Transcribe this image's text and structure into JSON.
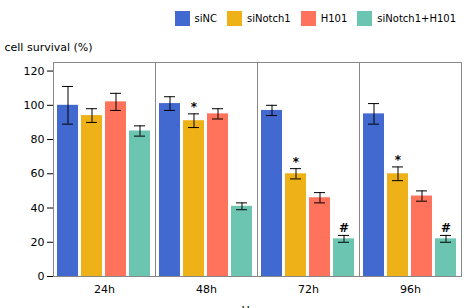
{
  "chart_data": {
    "type": "bar",
    "categories": [
      "24h",
      "48h",
      "72h",
      "96h"
    ],
    "series": [
      {
        "name": "siNC",
        "values": [
          100,
          101,
          97,
          95
        ],
        "errors": [
          11,
          4,
          3,
          6
        ]
      },
      {
        "name": "siNotch1",
        "values": [
          94,
          91,
          60,
          60
        ],
        "errors": [
          4,
          4,
          3,
          4
        ]
      },
      {
        "name": "H101",
        "values": [
          102,
          95,
          46,
          47
        ],
        "errors": [
          5,
          3,
          3,
          3
        ]
      },
      {
        "name": "siNotch1+H101",
        "values": [
          85,
          41,
          22,
          22
        ],
        "errors": [
          3,
          2,
          2,
          2
        ]
      }
    ],
    "xlabel": "Hours",
    "ylabel": "cell survival (%)",
    "ylim": [
      0,
      125
    ],
    "yticks": [
      0,
      20,
      40,
      60,
      80,
      100,
      120
    ],
    "grid": false,
    "legend": "upper right",
    "annotations": [
      {
        "text": "*",
        "category": "48h",
        "series": "siNotch1"
      },
      {
        "text": "*",
        "category": "72h",
        "series": "siNotch1"
      },
      {
        "text": "*",
        "category": "96h",
        "series": "siNotch1"
      },
      {
        "text": "#",
        "category": "72h",
        "series": "siNotch1+H101"
      },
      {
        "text": "#",
        "category": "96h",
        "series": "siNotch1+H101"
      }
    ]
  }
}
